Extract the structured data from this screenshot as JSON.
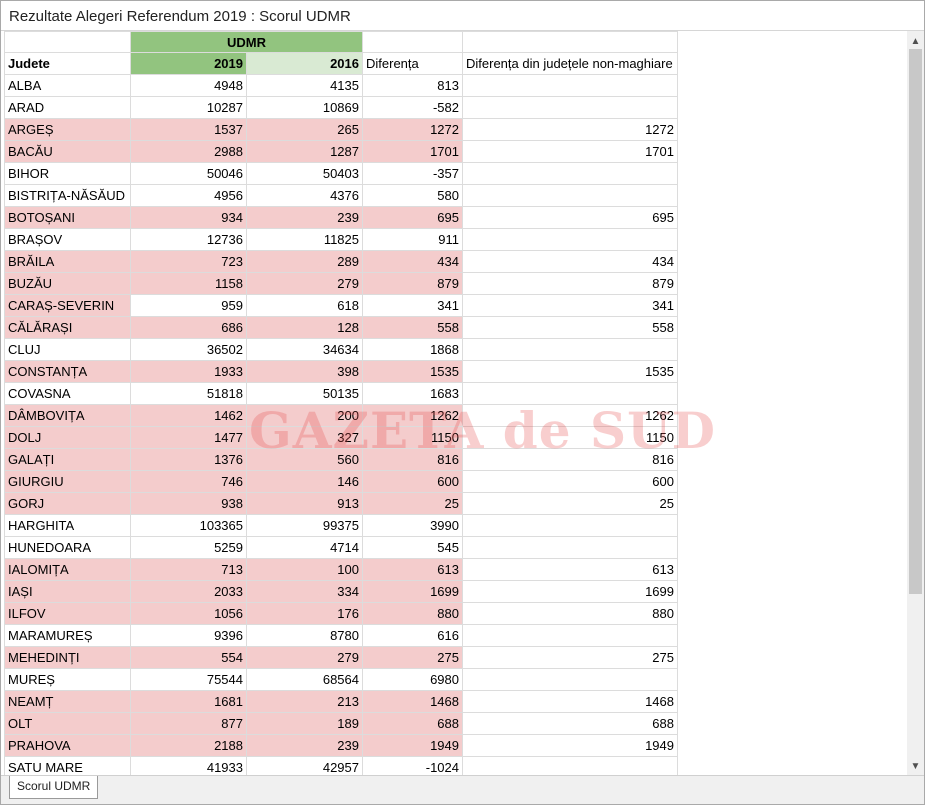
{
  "window": {
    "title": "Rezultate Alegeri Referendum 2019 : Scorul UDMR"
  },
  "header": {
    "group_label": "UDMR",
    "col_judete": "Judete",
    "col_2019": "2019",
    "col_2016": "2016",
    "col_diff": "Diferența",
    "col_diff_non": "Diferența din județele non-maghiare"
  },
  "watermark": "GAZETA de SUD",
  "rows": [
    {
      "judet": "ALBA",
      "v2019": "4948",
      "v2016": "4135",
      "diff": "813",
      "diff_non": "",
      "hl": "none"
    },
    {
      "judet": "ARAD",
      "v2019": "10287",
      "v2016": "10869",
      "diff": "-582",
      "diff_non": "",
      "hl": "none"
    },
    {
      "judet": "ARGEȘ",
      "v2019": "1537",
      "v2016": "265",
      "diff": "1272",
      "diff_non": "1272",
      "hl": "pink"
    },
    {
      "judet": "BACĂU",
      "v2019": "2988",
      "v2016": "1287",
      "diff": "1701",
      "diff_non": "1701",
      "hl": "pink"
    },
    {
      "judet": "BIHOR",
      "v2019": "50046",
      "v2016": "50403",
      "diff": "-357",
      "diff_non": "",
      "hl": "none"
    },
    {
      "judet": "BISTRIȚA-NĂSĂUD",
      "v2019": "4956",
      "v2016": "4376",
      "diff": "580",
      "diff_non": "",
      "hl": "none"
    },
    {
      "judet": "BOTOȘANI",
      "v2019": "934",
      "v2016": "239",
      "diff": "695",
      "diff_non": "695",
      "hl": "pink"
    },
    {
      "judet": "BRAȘOV",
      "v2019": "12736",
      "v2016": "11825",
      "diff": "911",
      "diff_non": "",
      "hl": "none"
    },
    {
      "judet": "BRĂILA",
      "v2019": "723",
      "v2016": "289",
      "diff": "434",
      "diff_non": "434",
      "hl": "pink"
    },
    {
      "judet": "BUZĂU",
      "v2019": "1158",
      "v2016": "279",
      "diff": "879",
      "diff_non": "879",
      "hl": "pink"
    },
    {
      "judet": "CARAȘ-SEVERIN",
      "v2019": "959",
      "v2016": "618",
      "diff": "341",
      "diff_non": "341",
      "hl": "partial"
    },
    {
      "judet": "CĂLĂRAȘI",
      "v2019": "686",
      "v2016": "128",
      "diff": "558",
      "diff_non": "558",
      "hl": "pink"
    },
    {
      "judet": "CLUJ",
      "v2019": "36502",
      "v2016": "34634",
      "diff": "1868",
      "diff_non": "",
      "hl": "none"
    },
    {
      "judet": "CONSTANȚA",
      "v2019": "1933",
      "v2016": "398",
      "diff": "1535",
      "diff_non": "1535",
      "hl": "pink"
    },
    {
      "judet": "COVASNA",
      "v2019": "51818",
      "v2016": "50135",
      "diff": "1683",
      "diff_non": "",
      "hl": "none"
    },
    {
      "judet": "DÂMBOVIȚA",
      "v2019": "1462",
      "v2016": "200",
      "diff": "1262",
      "diff_non": "1262",
      "hl": "pink"
    },
    {
      "judet": "DOLJ",
      "v2019": "1477",
      "v2016": "327",
      "diff": "1150",
      "diff_non": "1150",
      "hl": "pink"
    },
    {
      "judet": "GALAȚI",
      "v2019": "1376",
      "v2016": "560",
      "diff": "816",
      "diff_non": "816",
      "hl": "pink"
    },
    {
      "judet": "GIURGIU",
      "v2019": "746",
      "v2016": "146",
      "diff": "600",
      "diff_non": "600",
      "hl": "pink"
    },
    {
      "judet": "GORJ",
      "v2019": "938",
      "v2016": "913",
      "diff": "25",
      "diff_non": "25",
      "hl": "pink"
    },
    {
      "judet": "HARGHITA",
      "v2019": "103365",
      "v2016": "99375",
      "diff": "3990",
      "diff_non": "",
      "hl": "none"
    },
    {
      "judet": "HUNEDOARA",
      "v2019": "5259",
      "v2016": "4714",
      "diff": "545",
      "diff_non": "",
      "hl": "none"
    },
    {
      "judet": "IALOMIȚA",
      "v2019": "713",
      "v2016": "100",
      "diff": "613",
      "diff_non": "613",
      "hl": "pink"
    },
    {
      "judet": "IAȘI",
      "v2019": "2033",
      "v2016": "334",
      "diff": "1699",
      "diff_non": "1699",
      "hl": "pink"
    },
    {
      "judet": "ILFOV",
      "v2019": "1056",
      "v2016": "176",
      "diff": "880",
      "diff_non": "880",
      "hl": "pink"
    },
    {
      "judet": "MARAMUREȘ",
      "v2019": "9396",
      "v2016": "8780",
      "diff": "616",
      "diff_non": "",
      "hl": "none"
    },
    {
      "judet": "MEHEDINȚI",
      "v2019": "554",
      "v2016": "279",
      "diff": "275",
      "diff_non": "275",
      "hl": "pink"
    },
    {
      "judet": "MUREȘ",
      "v2019": "75544",
      "v2016": "68564",
      "diff": "6980",
      "diff_non": "",
      "hl": "none"
    },
    {
      "judet": "NEAMȚ",
      "v2019": "1681",
      "v2016": "213",
      "diff": "1468",
      "diff_non": "1468",
      "hl": "pink"
    },
    {
      "judet": "OLT",
      "v2019": "877",
      "v2016": "189",
      "diff": "688",
      "diff_non": "688",
      "hl": "pink"
    },
    {
      "judet": "PRAHOVA",
      "v2019": "2188",
      "v2016": "239",
      "diff": "1949",
      "diff_non": "1949",
      "hl": "pink"
    },
    {
      "judet": "SATU MARE",
      "v2019": "41933",
      "v2016": "42957",
      "diff": "-1024",
      "diff_non": "",
      "hl": "none"
    }
  ],
  "scrollbar": {
    "up_icon": "▲",
    "down_icon": "▼"
  },
  "sheet_tabs": [
    {
      "label": "Scorul UDMR",
      "active": true
    }
  ],
  "colors": {
    "header_green": "#92c47f",
    "header_light_green": "#d9ead3",
    "row_pink": "#f4cccc"
  }
}
